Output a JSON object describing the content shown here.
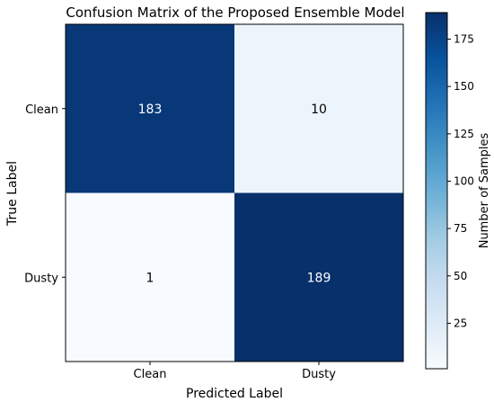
{
  "chart_data": {
    "type": "heatmap",
    "title": "Confusion Matrix of the Proposed Ensemble Model",
    "xlabel": "Predicted Label",
    "ylabel": "True Label",
    "x_categories": [
      "Clean",
      "Dusty"
    ],
    "y_categories": [
      "Clean",
      "Dusty"
    ],
    "values": [
      [
        183,
        10
      ],
      [
        1,
        189
      ]
    ],
    "colorscale": "Blues",
    "colorbar": {
      "label": "Number of Samples",
      "range": [
        1,
        189
      ],
      "ticks": [
        "25",
        "50",
        "75",
        "100",
        "125",
        "150",
        "175"
      ]
    },
    "text_colors": {
      "dark_cell": "#ffffff",
      "light_cell": "#000000"
    }
  }
}
